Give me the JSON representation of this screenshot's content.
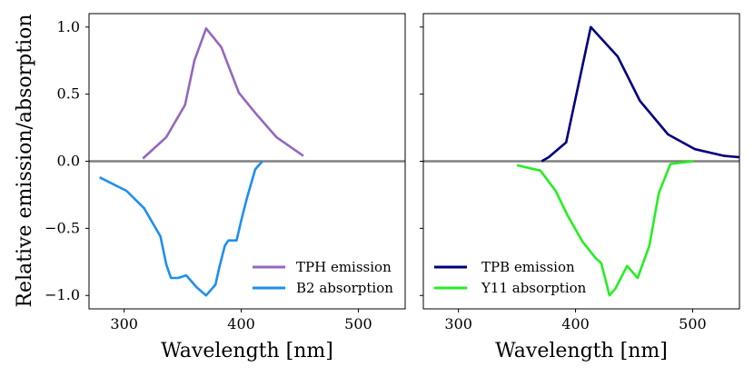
{
  "figure": {
    "ylabel": "Relative emission/absorption"
  },
  "chart_data": [
    {
      "type": "line",
      "panel": "left",
      "xlabel": "Wavelength [nm]",
      "ylabel": "Relative emission/absorption",
      "xlim": [
        270,
        540
      ],
      "ylim": [
        -1.1,
        1.1
      ],
      "xticks": [
        300,
        400,
        500
      ],
      "yticks": [
        1.0,
        0.5,
        0.0,
        -0.5,
        -1.0
      ],
      "xtick_labels": [
        "300",
        "400",
        "500"
      ],
      "ytick_labels": [
        "1.0",
        "0.5",
        "0.0",
        "−0.5",
        "−1.0"
      ],
      "zero_line_color": "#808080",
      "legend_position": "lower-right",
      "series": [
        {
          "name": "TPH emission",
          "color": "#9467bd",
          "x": [
            316,
            336,
            352,
            360,
            370,
            383,
            398,
            413,
            430,
            453
          ],
          "y": [
            0.02,
            0.18,
            0.42,
            0.75,
            0.99,
            0.85,
            0.51,
            0.35,
            0.18,
            0.04
          ]
        },
        {
          "name": "B2 absorption",
          "color": "#1e8ff0",
          "x": [
            279,
            302,
            317,
            331,
            336,
            340,
            346,
            353,
            362,
            370,
            378,
            381,
            386,
            389,
            396,
            400,
            405,
            412,
            418
          ],
          "y": [
            -0.12,
            -0.22,
            -0.35,
            -0.56,
            -0.77,
            -0.87,
            -0.87,
            -0.85,
            -0.94,
            -1.0,
            -0.92,
            -0.8,
            -0.63,
            -0.59,
            -0.59,
            -0.44,
            -0.27,
            -0.06,
            0.0
          ]
        }
      ]
    },
    {
      "type": "line",
      "panel": "right",
      "xlabel": "Wavelength [nm]",
      "xlim": [
        270,
        540
      ],
      "ylim": [
        -1.1,
        1.1
      ],
      "xticks": [
        300,
        400,
        500
      ],
      "xtick_labels": [
        "300",
        "400",
        "500"
      ],
      "zero_line_color": "#808080",
      "legend_position": "lower-left",
      "series": [
        {
          "name": "TPB emission",
          "color": "#00007f",
          "x": [
            371,
            377,
            392,
            413,
            436,
            455,
            479,
            502,
            527,
            540
          ],
          "y": [
            0.0,
            0.03,
            0.14,
            1.0,
            0.78,
            0.45,
            0.2,
            0.09,
            0.04,
            0.03
          ]
        },
        {
          "name": "Y11 absorption",
          "color": "#26ee22",
          "x": [
            350,
            370,
            383,
            393,
            406,
            417,
            422,
            429,
            434,
            444,
            453,
            463,
            471,
            481,
            501
          ],
          "y": [
            -0.03,
            -0.07,
            -0.22,
            -0.4,
            -0.6,
            -0.72,
            -0.76,
            -1.0,
            -0.95,
            -0.78,
            -0.87,
            -0.63,
            -0.24,
            -0.02,
            0.0
          ]
        }
      ]
    }
  ]
}
